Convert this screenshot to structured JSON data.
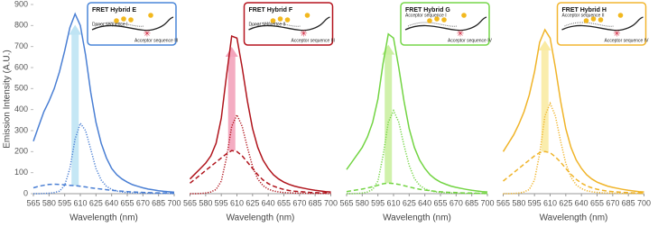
{
  "chart_data": [
    {
      "type": "line",
      "title": "FRET Hybrid E",
      "inset_labels": [
        "Donor sequence I",
        "Acceptor sequence III"
      ],
      "border_color": "#4a86d8",
      "arrow_color": "#bfe4f4",
      "ylabel": "Emission Intensity (A.U.)",
      "xlabel": "Wavelength (nm)",
      "x": [
        565,
        570,
        575,
        580,
        585,
        590,
        595,
        600,
        605,
        610,
        615,
        620,
        625,
        630,
        635,
        640,
        645,
        650,
        655,
        660,
        665,
        670,
        675,
        680,
        685,
        690,
        695,
        700
      ],
      "xlim": [
        565,
        700
      ],
      "xticks": [
        565,
        580,
        595,
        610,
        625,
        640,
        655,
        670,
        685,
        700
      ],
      "ylim": [
        0,
        900
      ],
      "yticks": [
        0,
        100,
        200,
        300,
        400,
        500,
        600,
        700,
        800,
        900
      ],
      "series": [
        {
          "color": "#4a7fd4",
          "style": "solid",
          "values": [
            250,
            320,
            390,
            440,
            500,
            580,
            680,
            790,
            855,
            800,
            660,
            480,
            340,
            240,
            170,
            120,
            90,
            70,
            55,
            43,
            35,
            28,
            22,
            18,
            14,
            11,
            9,
            7
          ]
        },
        {
          "color": "#4a7fd4",
          "style": "dotted",
          "values": [
            0,
            0,
            1,
            2,
            5,
            12,
            40,
            120,
            260,
            335,
            300,
            210,
            120,
            65,
            35,
            20,
            12,
            8,
            5,
            4,
            3,
            2,
            2,
            1,
            1,
            1,
            1,
            0
          ]
        },
        {
          "color": "#4a7fd4",
          "style": "dashed",
          "values": [
            28,
            35,
            40,
            44,
            45,
            44,
            42,
            40,
            38,
            35,
            32,
            28,
            25,
            22,
            19,
            16,
            14,
            12,
            10,
            8,
            7,
            6,
            5,
            4,
            4,
            3,
            3,
            2
          ]
        }
      ]
    },
    {
      "type": "line",
      "title": "FRET Hybrid F",
      "inset_labels": [
        "Donor sequence II",
        "Acceptor sequence III"
      ],
      "border_color": "#b5141e",
      "arrow_color": "#f3a3bb",
      "xlabel": "Wavelength (nm)",
      "x": [
        565,
        570,
        575,
        580,
        585,
        590,
        595,
        600,
        605,
        610,
        615,
        620,
        625,
        630,
        635,
        640,
        645,
        650,
        655,
        660,
        665,
        670,
        675,
        680,
        685,
        690,
        695,
        700
      ],
      "xlim": [
        565,
        700
      ],
      "xticks": [
        565,
        580,
        595,
        610,
        625,
        640,
        655,
        670,
        685,
        700
      ],
      "ylim": [
        0,
        900
      ],
      "series": [
        {
          "color": "#b0141c",
          "style": "solid",
          "values": [
            70,
            95,
            120,
            145,
            180,
            240,
            360,
            560,
            750,
            740,
            600,
            440,
            310,
            220,
            160,
            120,
            90,
            70,
            55,
            44,
            36,
            30,
            25,
            20,
            16,
            13,
            10,
            8
          ]
        },
        {
          "color": "#b0141c",
          "style": "dotted",
          "values": [
            0,
            0,
            1,
            3,
            8,
            20,
            60,
            170,
            320,
            375,
            320,
            220,
            130,
            70,
            38,
            22,
            13,
            8,
            5,
            4,
            3,
            2,
            2,
            1,
            1,
            1,
            1,
            0
          ]
        },
        {
          "color": "#b0141c",
          "style": "dashed",
          "values": [
            50,
            70,
            90,
            110,
            130,
            150,
            170,
            190,
            205,
            200,
            180,
            150,
            120,
            90,
            65,
            48,
            36,
            27,
            20,
            15,
            12,
            10,
            8,
            6,
            5,
            4,
            3,
            3
          ]
        }
      ]
    },
    {
      "type": "line",
      "title": "FRET Hybrid G",
      "inset_labels": [
        "Acceptor sequence I",
        "Acceptor sequence IV"
      ],
      "border_color": "#76d64a",
      "arrow_color": "#cbf0a2",
      "xlabel": "Wavelength (nm)",
      "x": [
        565,
        570,
        575,
        580,
        585,
        590,
        595,
        600,
        605,
        610,
        615,
        620,
        625,
        630,
        635,
        640,
        645,
        650,
        655,
        660,
        665,
        670,
        675,
        680,
        685,
        690,
        695,
        700
      ],
      "xlim": [
        565,
        700
      ],
      "xticks": [
        565,
        580,
        595,
        610,
        625,
        640,
        655,
        670,
        685,
        700
      ],
      "ylim": [
        0,
        900
      ],
      "series": [
        {
          "color": "#72d442",
          "style": "solid",
          "values": [
            115,
            150,
            185,
            220,
            270,
            340,
            450,
            620,
            760,
            740,
            600,
            440,
            310,
            220,
            160,
            120,
            90,
            70,
            55,
            45,
            36,
            30,
            25,
            20,
            16,
            13,
            10,
            8
          ]
        },
        {
          "color": "#72d442",
          "style": "dotted",
          "values": [
            0,
            0,
            1,
            3,
            8,
            20,
            60,
            180,
            340,
            395,
            340,
            230,
            135,
            72,
            40,
            23,
            14,
            9,
            6,
            4,
            3,
            2,
            2,
            1,
            1,
            1,
            1,
            0
          ]
        },
        {
          "color": "#72d442",
          "style": "dashed",
          "values": [
            10,
            14,
            18,
            22,
            27,
            33,
            40,
            47,
            50,
            48,
            44,
            38,
            32,
            26,
            21,
            17,
            14,
            11,
            9,
            7,
            6,
            5,
            4,
            3,
            3,
            2,
            2,
            2
          ]
        }
      ]
    },
    {
      "type": "line",
      "title": "FRET Hybrid H",
      "inset_labels": [
        "Acceptor sequence II",
        "Acceptor sequence IV"
      ],
      "border_color": "#f2b630",
      "arrow_color": "#faeba4",
      "xlabel": "Wavelength (nm)",
      "x": [
        565,
        570,
        575,
        580,
        585,
        590,
        595,
        600,
        605,
        610,
        615,
        620,
        625,
        630,
        635,
        640,
        645,
        650,
        655,
        660,
        665,
        670,
        675,
        680,
        685,
        690,
        695,
        700
      ],
      "xlim": [
        565,
        700
      ],
      "xticks": [
        565,
        580,
        595,
        610,
        625,
        640,
        655,
        670,
        685,
        700
      ],
      "ylim": [
        0,
        900
      ],
      "series": [
        {
          "color": "#f0b429",
          "style": "solid",
          "values": [
            200,
            240,
            280,
            330,
            390,
            470,
            580,
            720,
            780,
            740,
            600,
            440,
            310,
            220,
            160,
            120,
            90,
            70,
            55,
            45,
            36,
            30,
            25,
            20,
            16,
            13,
            10,
            8
          ]
        },
        {
          "color": "#f0b429",
          "style": "dotted",
          "values": [
            0,
            0,
            1,
            3,
            8,
            20,
            65,
            190,
            370,
            430,
            370,
            250,
            145,
            78,
            42,
            24,
            14,
            9,
            6,
            4,
            3,
            2,
            2,
            1,
            1,
            1,
            1,
            0
          ]
        },
        {
          "color": "#f0b429",
          "style": "dashed",
          "values": [
            60,
            80,
            100,
            120,
            140,
            160,
            180,
            195,
            200,
            195,
            175,
            150,
            120,
            92,
            68,
            50,
            37,
            28,
            21,
            16,
            12,
            10,
            8,
            6,
            5,
            4,
            3,
            3
          ]
        }
      ]
    }
  ]
}
